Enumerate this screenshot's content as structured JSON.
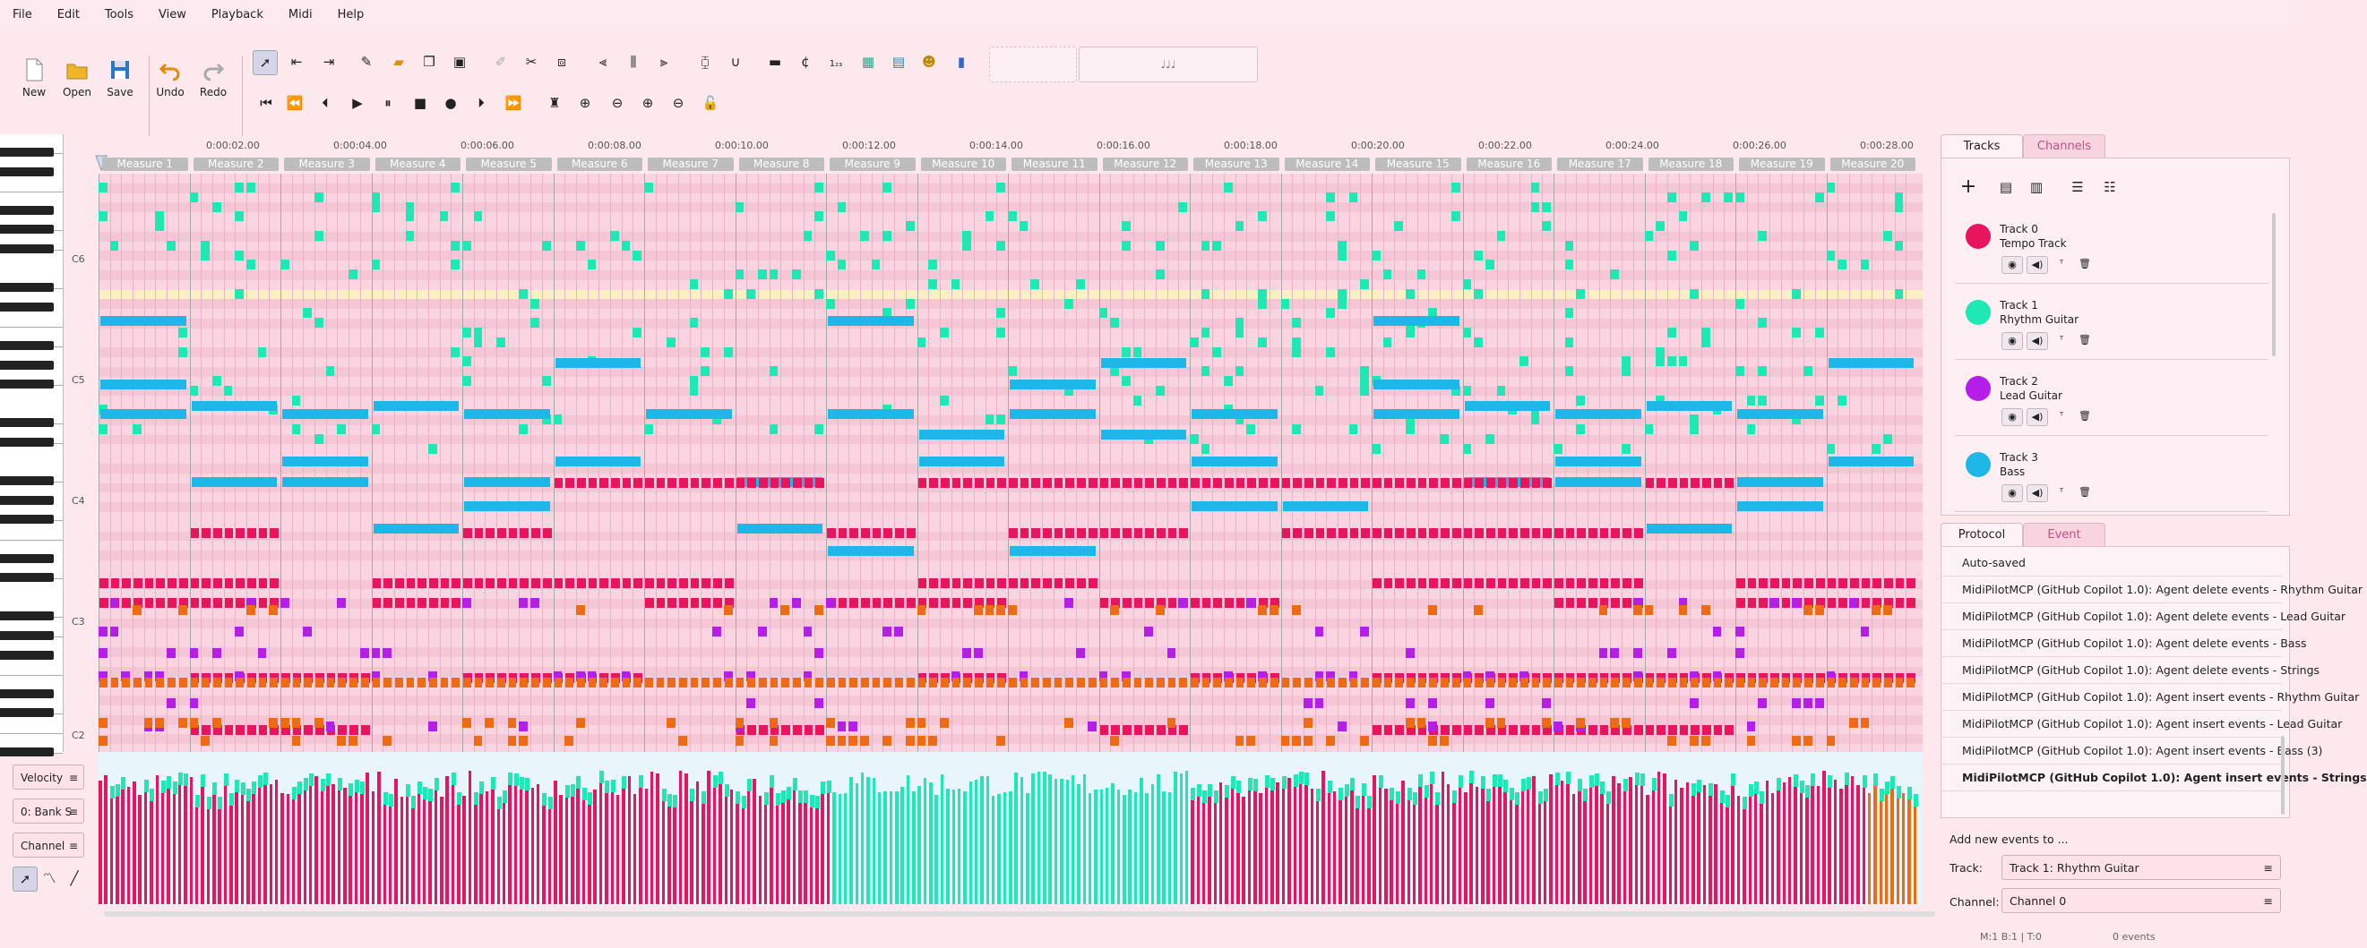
{
  "menu": [
    "File",
    "Edit",
    "Tools",
    "View",
    "Playback",
    "Midi",
    "Help"
  ],
  "toolbar": {
    "new": "New",
    "open": "Open",
    "save": "Save",
    "undo": "Undo",
    "redo": "Redo",
    "time_display": "",
    "tempo_display": "♩♩♩"
  },
  "ruler": {
    "times": [
      "0:00:02.00",
      "0:00:04.00",
      "0:00:06.00",
      "0:00:08.00",
      "0:00:10.00",
      "0:00:12.00",
      "0:00:14.00",
      "0:00:16.00",
      "0:00:18.00",
      "0:00:20.00",
      "0:00:22.00",
      "0:00:24.00",
      "0:00:26.00",
      "0:00:28.00"
    ],
    "measures": [
      "Measure 1",
      "Measure 2",
      "Measure 3",
      "Measure 4",
      "Measure 5",
      "Measure 6",
      "Measure 7",
      "Measure 8",
      "Measure 9",
      "Measure 10",
      "Measure 11",
      "Measure 12",
      "Measure 13",
      "Measure 14",
      "Measure 15",
      "Measure 16",
      "Measure 17",
      "Measure 18",
      "Measure 19",
      "Measure 20"
    ]
  },
  "piano_labels": [
    "C6",
    "C5",
    "C4",
    "C3",
    "C2"
  ],
  "velocity_panel": {
    "velocity": "Velocity",
    "bank": "0: Bank S",
    "channel": "Channel"
  },
  "tabs": {
    "tracks": "Tracks",
    "channels": "Channels",
    "protocol": "Protocol",
    "event": "Event"
  },
  "tracks": [
    {
      "id": "Track 0",
      "name": "Tempo Track",
      "color": "#e8145e"
    },
    {
      "id": "Track 1",
      "name": "Rhythm Guitar",
      "color": "#1ee8b4"
    },
    {
      "id": "Track 2",
      "name": "Lead Guitar",
      "color": "#b41ee8"
    },
    {
      "id": "Track 3",
      "name": "Bass",
      "color": "#1eb8e8"
    }
  ],
  "protocol": [
    "Auto-saved",
    "MidiPilotMCP (GitHub Copilot 1.0): Agent delete events - Rhythm Guitar",
    "MidiPilotMCP (GitHub Copilot 1.0): Agent delete events - Lead Guitar",
    "MidiPilotMCP (GitHub Copilot 1.0): Agent delete events - Bass",
    "MidiPilotMCP (GitHub Copilot 1.0): Agent delete events - Strings",
    "MidiPilotMCP (GitHub Copilot 1.0): Agent insert events - Rhythm Guitar",
    "MidiPilotMCP (GitHub Copilot 1.0): Agent insert events - Lead Guitar",
    "MidiPilotMCP (GitHub Copilot 1.0): Agent insert events - Bass (3)",
    "MidiPilotMCP (GitHub Copilot 1.0): Agent insert events - Strings"
  ],
  "add_events": {
    "title": "Add new events to ...",
    "track_label": "Track:",
    "track_value": "Track 1: Rhythm Guitar",
    "channel_label": "Channel:",
    "channel_value": "Channel 0"
  },
  "status": {
    "position": "M:1 B:1 | T:0",
    "events": "0 events"
  },
  "colors": {
    "pink": "#e8145e",
    "teal": "#1ee8b4",
    "blue": "#1eb8e8",
    "purple": "#b41ee8",
    "orange": "#ee6a14"
  }
}
